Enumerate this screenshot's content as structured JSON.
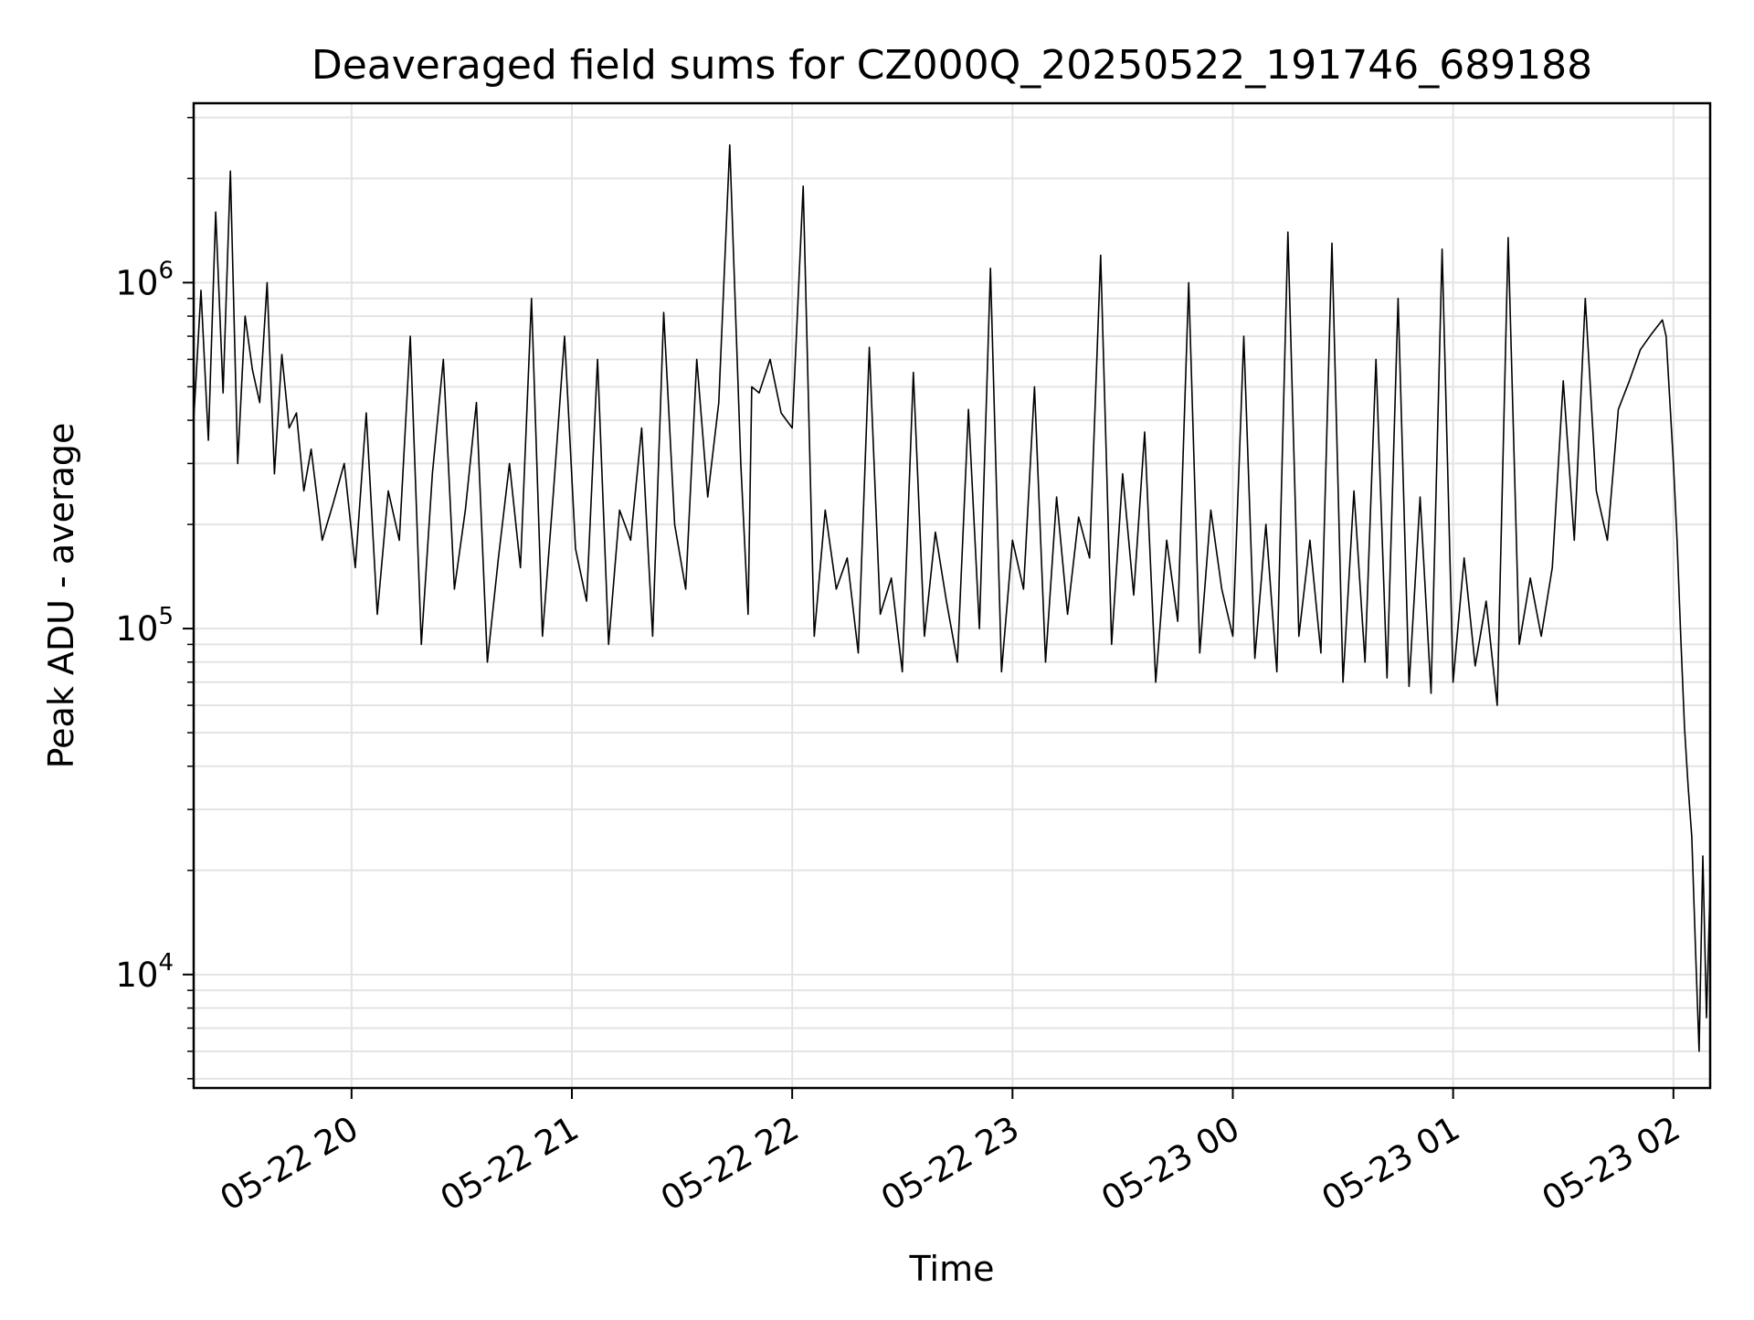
{
  "chart_data": {
    "type": "line",
    "title": "Deaveraged field sums for CZ000Q_20250522_191746_689188",
    "xlabel": "Time",
    "ylabel": "Peak ADU - average",
    "yscale": "log",
    "ylim": [
      4700,
      3300000
    ],
    "xlim": [
      "05-22 19:17",
      "05-23 02:10"
    ],
    "grid": true,
    "legend": "none",
    "line_color": "#000000",
    "x_tick_labels": [
      "05-22 20",
      "05-22 21",
      "05-22 22",
      "05-22 23",
      "05-23 00",
      "05-23 01",
      "05-23 02"
    ],
    "x_ticks": [
      "05-22 20:00",
      "05-22 21:00",
      "05-22 22:00",
      "05-22 23:00",
      "05-23 00:00",
      "05-23 01:00",
      "05-23 02:00"
    ],
    "y_tick_labels": [
      {
        "base": "10",
        "exp": "4",
        "value": 10000
      },
      {
        "base": "10",
        "exp": "5",
        "value": 100000
      },
      {
        "base": "10",
        "exp": "6",
        "value": 1000000
      }
    ],
    "series": [
      {
        "x": [
          "05-22 19:17",
          "05-22 19:19",
          "05-22 19:21",
          "05-22 19:23",
          "05-22 19:25",
          "05-22 19:27",
          "05-22 19:29",
          "05-22 19:31",
          "05-22 19:33",
          "05-22 19:35",
          "05-22 19:37",
          "05-22 19:39",
          "05-22 19:41",
          "05-22 19:43",
          "05-22 19:45",
          "05-22 19:47",
          "05-22 19:49",
          "05-22 19:52",
          "05-22 19:55",
          "05-22 19:58",
          "05-22 20:01",
          "05-22 20:04",
          "05-22 20:07",
          "05-22 20:10",
          "05-22 20:13",
          "05-22 20:16",
          "05-22 20:19",
          "05-22 20:22",
          "05-22 20:25",
          "05-22 20:28",
          "05-22 20:31",
          "05-22 20:34",
          "05-22 20:37",
          "05-22 20:40",
          "05-22 20:43",
          "05-22 20:46",
          "05-22 20:49",
          "05-22 20:52",
          "05-22 20:55",
          "05-22 20:58",
          "05-22 21:01",
          "05-22 21:04",
          "05-22 21:07",
          "05-22 21:10",
          "05-22 21:13",
          "05-22 21:16",
          "05-22 21:19",
          "05-22 21:22",
          "05-22 21:25",
          "05-22 21:28",
          "05-22 21:31",
          "05-22 21:34",
          "05-22 21:37",
          "05-22 21:40",
          "05-22 21:43",
          "05-22 21:46",
          "05-22 21:48",
          "05-22 21:49",
          "05-22 21:51",
          "05-22 21:54",
          "05-22 21:57",
          "05-22 22:00",
          "05-22 22:03",
          "05-22 22:06",
          "05-22 22:09",
          "05-22 22:12",
          "05-22 22:15",
          "05-22 22:18",
          "05-22 22:21",
          "05-22 22:24",
          "05-22 22:27",
          "05-22 22:30",
          "05-22 22:33",
          "05-22 22:36",
          "05-22 22:39",
          "05-22 22:42",
          "05-22 22:45",
          "05-22 22:48",
          "05-22 22:51",
          "05-22 22:54",
          "05-22 22:57",
          "05-22 23:00",
          "05-22 23:03",
          "05-22 23:06",
          "05-22 23:09",
          "05-22 23:12",
          "05-22 23:15",
          "05-22 23:18",
          "05-22 23:21",
          "05-22 23:24",
          "05-22 23:27",
          "05-22 23:30",
          "05-22 23:33",
          "05-22 23:36",
          "05-22 23:39",
          "05-22 23:42",
          "05-22 23:45",
          "05-22 23:48",
          "05-22 23:51",
          "05-22 23:54",
          "05-22 23:57",
          "05-23 00:00",
          "05-23 00:03",
          "05-23 00:06",
          "05-23 00:09",
          "05-23 00:12",
          "05-23 00:15",
          "05-23 00:18",
          "05-23 00:21",
          "05-23 00:24",
          "05-23 00:27",
          "05-23 00:30",
          "05-23 00:33",
          "05-23 00:36",
          "05-23 00:39",
          "05-23 00:42",
          "05-23 00:45",
          "05-23 00:48",
          "05-23 00:51",
          "05-23 00:54",
          "05-23 00:57",
          "05-23 01:00",
          "05-23 01:03",
          "05-23 01:06",
          "05-23 01:09",
          "05-23 01:12",
          "05-23 01:15",
          "05-23 01:18",
          "05-23 01:21",
          "05-23 01:24",
          "05-23 01:27",
          "05-23 01:30",
          "05-23 01:33",
          "05-23 01:36",
          "05-23 01:39",
          "05-23 01:42",
          "05-23 01:45",
          "05-23 01:48",
          "05-23 01:51",
          "05-23 01:54",
          "05-23 01:57",
          "05-23 01:58",
          "05-23 02:00",
          "05-23 02:01",
          "05-23 02:02",
          "05-23 02:03",
          "05-23 02:04",
          "05-23 02:05",
          "05-23 02:06",
          "05-23 02:07",
          "05-23 02:08",
          "05-23 02:09",
          "05-23 02:10"
        ],
        "y": [
          400000,
          950000,
          350000,
          1600000,
          480000,
          2100000,
          300000,
          800000,
          560000,
          450000,
          1000000,
          280000,
          620000,
          380000,
          420000,
          250000,
          330000,
          180000,
          230000,
          300000,
          150000,
          420000,
          110000,
          250000,
          180000,
          700000,
          90000,
          280000,
          600000,
          130000,
          220000,
          450000,
          80000,
          160000,
          300000,
          150000,
          900000,
          95000,
          250000,
          700000,
          170000,
          120000,
          600000,
          90000,
          220000,
          180000,
          380000,
          95000,
          820000,
          200000,
          130000,
          600000,
          240000,
          450000,
          2500000,
          300000,
          110000,
          500000,
          480000,
          600000,
          420000,
          380000,
          1900000,
          95000,
          220000,
          130000,
          160000,
          85000,
          650000,
          110000,
          140000,
          75000,
          550000,
          95000,
          190000,
          120000,
          80000,
          430000,
          100000,
          1100000,
          75000,
          180000,
          130000,
          500000,
          80000,
          240000,
          110000,
          210000,
          160000,
          1200000,
          90000,
          280000,
          125000,
          370000,
          70000,
          180000,
          105000,
          1000000,
          85000,
          220000,
          130000,
          95000,
          700000,
          82000,
          200000,
          75000,
          1400000,
          95000,
          180000,
          85000,
          1300000,
          70000,
          250000,
          80000,
          600000,
          72000,
          900000,
          68000,
          240000,
          65000,
          1250000,
          70000,
          160000,
          78000,
          120000,
          60000,
          1350000,
          90000,
          140000,
          95000,
          150000,
          520000,
          180000,
          900000,
          250000,
          180000,
          430000,
          520000,
          640000,
          710000,
          780000,
          700000,
          300000,
          180000,
          95000,
          52000,
          35000,
          25000,
          12000,
          6000,
          22000,
          7500,
          18000
        ]
      }
    ]
  }
}
